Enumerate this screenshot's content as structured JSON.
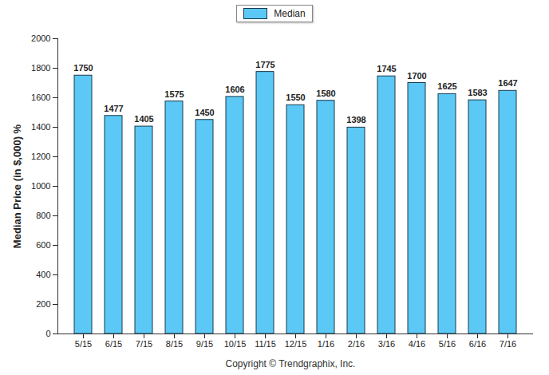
{
  "chart_data": {
    "type": "bar",
    "categories": [
      "5/15",
      "6/15",
      "7/15",
      "8/15",
      "9/15",
      "10/15",
      "11/15",
      "12/15",
      "1/16",
      "2/16",
      "3/16",
      "4/16",
      "5/16",
      "6/16",
      "7/16"
    ],
    "series": [
      {
        "name": "Median",
        "color": "#5bc8f5",
        "values": [
          1750,
          1477,
          1405,
          1575,
          1450,
          1606,
          1775,
          1550,
          1580,
          1398,
          1745,
          1700,
          1625,
          1583,
          1647
        ]
      }
    ],
    "y_label": "Median Price (in $,000) %",
    "caption": "Copyright © Trendgraphix, Inc.",
    "ylim": [
      0,
      2000
    ],
    "yticks": [
      0,
      200,
      400,
      600,
      800,
      1000,
      1200,
      1400,
      1600,
      1800,
      2000
    ],
    "grid": false,
    "legend": "top",
    "data_labels": true
  }
}
